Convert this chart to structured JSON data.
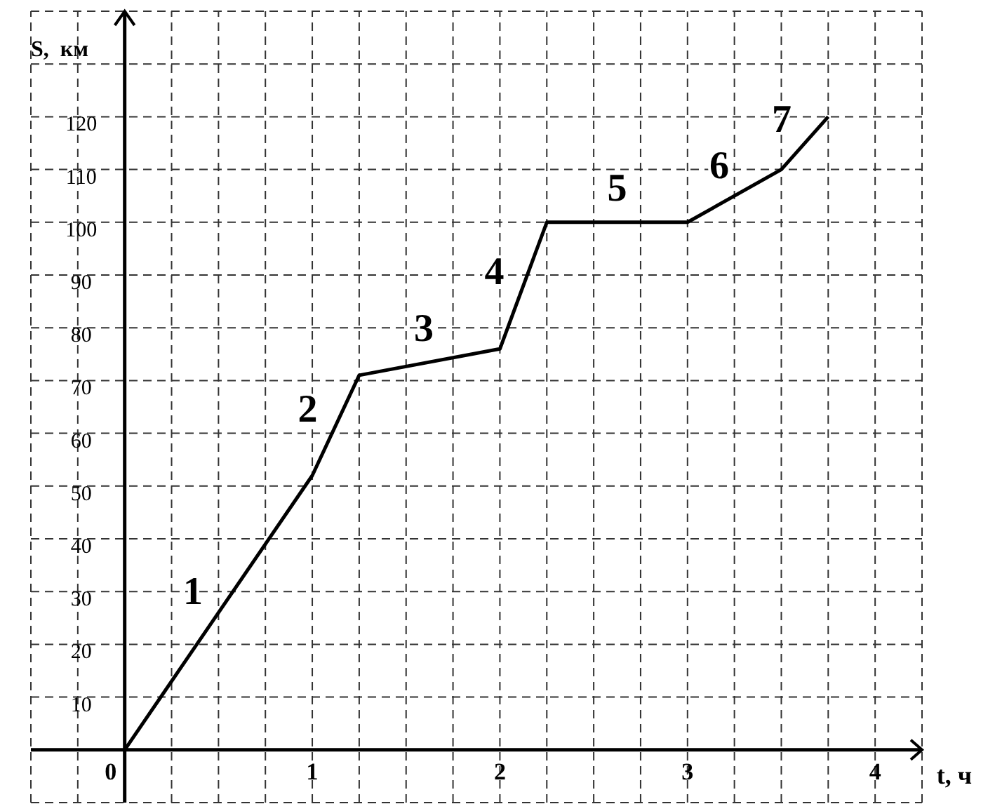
{
  "chart_data": {
    "type": "line",
    "xlabel": "t, ч",
    "ylabel": "S,  км",
    "x": [
      0,
      1,
      1.25,
      2,
      2.25,
      3,
      3.5,
      3.75
    ],
    "series": [
      {
        "color": "#000000",
        "values": [
          0,
          52,
          71,
          76,
          100,
          100,
          110,
          120
        ]
      }
    ],
    "xlim": [
      -0.5,
      4.25
    ],
    "ylim": [
      -10,
      140
    ],
    "xticks": [
      {
        "value": -0.5,
        "label": null
      },
      {
        "value": -0.25,
        "label": null
      },
      0,
      {
        "value": 0.25,
        "label": null
      },
      {
        "value": 0.5,
        "label": null
      },
      {
        "value": 0.75,
        "label": null
      },
      1,
      {
        "value": 1.25,
        "label": null
      },
      {
        "value": 1.5,
        "label": null
      },
      {
        "value": 1.75,
        "label": null
      },
      2,
      {
        "value": 2.25,
        "label": null
      },
      {
        "value": 2.5,
        "label": null
      },
      {
        "value": 2.75,
        "label": null
      },
      3,
      {
        "value": 3.25,
        "label": null
      },
      {
        "value": 3.5,
        "label": null
      },
      {
        "value": 3.75,
        "label": null
      },
      4,
      {
        "value": 4.25,
        "label": null
      }
    ],
    "yticks": [
      {
        "value": -10,
        "label": null
      },
      {
        "value": 0,
        "label": null
      },
      10,
      20,
      30,
      40,
      50,
      60,
      70,
      80,
      90,
      100,
      110,
      120,
      {
        "value": 130,
        "label": null
      },
      {
        "value": 140,
        "label": null
      }
    ],
    "grid": true,
    "line_style": "solid",
    "marker": "none",
    "annotations": [
      "1",
      "2",
      "3",
      "4",
      "5",
      "6",
      "7"
    ]
  }
}
